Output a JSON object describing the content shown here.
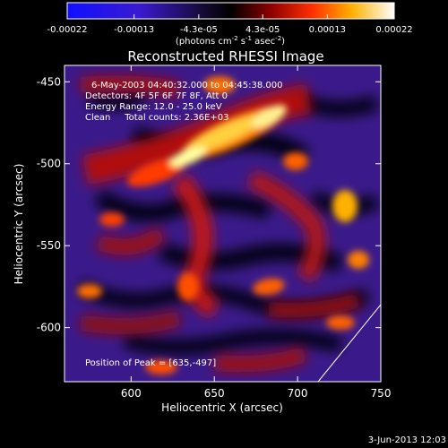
{
  "colorbar": {
    "ticks": [
      "-0.00022",
      "-0.00013",
      "-4.3e-05",
      "4.3e-05",
      "0.00013",
      "0.00022"
    ],
    "unit_main": "(photons cm",
    "unit_sup1": "-2",
    "unit_mid1": " s",
    "unit_sup2": "-1",
    "unit_mid2": " asec",
    "unit_sup3": "-2",
    "unit_end": ")"
  },
  "chart_data": {
    "type": "heatmap",
    "title": "Reconstructed RHESSI Image",
    "xlabel": "Heliocentric X (arcsec)",
    "ylabel": "Heliocentric Y (arcsec)",
    "xlim": [
      560,
      750
    ],
    "ylim": [
      -633,
      -440
    ],
    "x_ticks": [
      "600",
      "650",
      "700",
      "750"
    ],
    "y_ticks": [
      "-450",
      "-500",
      "-550",
      "-600"
    ],
    "x_tick_values": [
      600,
      650,
      700,
      750
    ],
    "y_tick_values": [
      -450,
      -500,
      -550,
      -600
    ],
    "colormap": "hot (blue-black-red-yellow-white)",
    "color_range": [
      -0.00022,
      0.00022
    ],
    "peak": [
      635,
      -497
    ],
    "annotations": [
      "6-May-2003 04:40:32.000 to 04:45:38.000",
      "Detectors: 4F 5F 6F 7F 8F, Att 0",
      "Energy Range: 12.0 - 25.0 keV",
      "Clean     Total counts: 2.36E+03"
    ],
    "peak_label": "Position of Peak = [635,-497]"
  },
  "footer": {
    "date": "3-Jun-2013 12:03"
  }
}
